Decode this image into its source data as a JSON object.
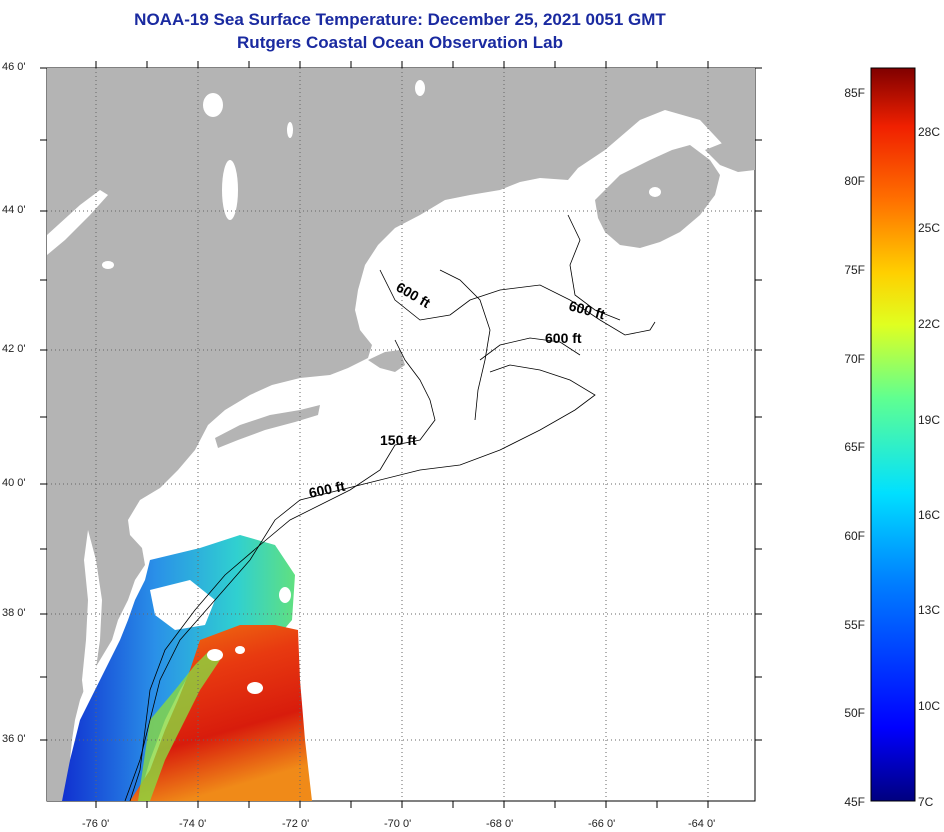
{
  "title": {
    "line1": "NOAA-19 Sea Surface Temperature:  December 25, 2021 0051 GMT",
    "line2": "Rutgers Coastal Ocean Observation Lab"
  },
  "map": {
    "lat_labels": [
      "46 0'",
      "44 0'",
      "42 0'",
      "40 0'",
      "38 0'",
      "36 0'"
    ],
    "lon_labels": [
      "-76 0'",
      "-74 0'",
      "-72 0'",
      "-70 0'",
      "-68 0'",
      "-66 0'",
      "-64 0'"
    ],
    "contours": [
      "600 ft",
      "600 ft",
      "600 ft",
      "150 ft",
      "600 ft"
    ],
    "colors": {
      "land": "#b4b4b4",
      "ocean": "#ffffff",
      "grid": "#666666"
    }
  },
  "colorbar": {
    "fahrenheit": [
      "85F",
      "80F",
      "75F",
      "70F",
      "65F",
      "60F",
      "55F",
      "50F",
      "45F"
    ],
    "celsius": [
      "28C",
      "25C",
      "22C",
      "19C",
      "16C",
      "13C",
      "10C",
      "7C"
    ],
    "range_f": [
      45,
      86
    ]
  }
}
